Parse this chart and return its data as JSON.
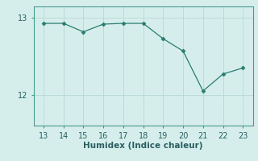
{
  "x": [
    13,
    14,
    15,
    16,
    17,
    18,
    19,
    20,
    21,
    22,
    23
  ],
  "y": [
    12.93,
    12.93,
    12.82,
    12.92,
    12.93,
    12.93,
    12.73,
    12.57,
    12.05,
    12.27,
    12.35
  ],
  "line_color": "#2a7d6e",
  "marker": "D",
  "marker_size": 2.5,
  "bg_color": "#d5eeec",
  "grid_color": "#b8d8d5",
  "xlabel": "Humidex (Indice chaleur)",
  "xlim": [
    12.5,
    23.5
  ],
  "ylim": [
    11.6,
    13.15
  ],
  "yticks": [
    12,
    13
  ],
  "xticks": [
    13,
    14,
    15,
    16,
    17,
    18,
    19,
    20,
    21,
    22,
    23
  ],
  "xlabel_fontsize": 7.5,
  "tick_fontsize": 7,
  "spine_color": "#4a9a8a"
}
